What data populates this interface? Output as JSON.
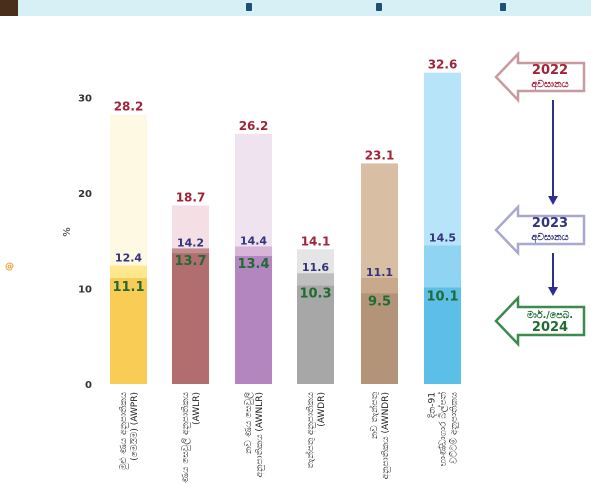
{
  "chart_data": {
    "type": "bar",
    "ylabel": "%",
    "ylim": [
      0,
      35
    ],
    "yticks": [
      0,
      10,
      20,
      30
    ],
    "grid": false,
    "categories": [
      {
        "lines": [
          "මුළු ණය අනුපාතිකය",
          "(මෙයිම) (AWPR)"
        ]
      },
      {
        "lines": [
          "ණය සෙවුලි අනුපාතිකය",
          "(AWLR)"
        ]
      },
      {
        "lines": [
          "නව ණය සෙවුලි",
          "අනුපාතිකය (AWNLR)"
        ]
      },
      {
        "lines": [
          "තැන්පතු අනුපාතිකය",
          "(AWDR)"
        ]
      },
      {
        "lines": [
          "නව තැන්පතු",
          "අනුපාතිකය (AWNDR)"
        ]
      },
      {
        "lines": [
          "දින-91",
          "භාණ්ඩාගාර බිල්පත්",
          "වට්ටම් අනුපාතිකය"
        ]
      }
    ],
    "series": [
      {
        "name": "2022 අවසානය",
        "values": [
          28.2,
          18.7,
          26.2,
          14.1,
          23.1,
          32.6
        ],
        "label_color": "#a0243a"
      },
      {
        "name": "2023 අවසානය",
        "values": [
          12.4,
          14.2,
          14.4,
          11.6,
          11.1,
          14.5
        ],
        "label_color": "#34337d"
      },
      {
        "name": "මාර්./පෙබ. 2024",
        "values": [
          11.1,
          13.7,
          13.4,
          10.3,
          9.5,
          10.1
        ],
        "label_color": "#1f6b33"
      }
    ],
    "bar_colors": [
      {
        "dark": "#f9cd55",
        "mid": "#fde88f",
        "light": "#fdf9e3"
      },
      {
        "dark": "#b26e6e",
        "mid": "#c08e91",
        "light": "#f3dfe4"
      },
      {
        "dark": "#b386bf",
        "mid": "#d8b4d9",
        "light": "#efe3f0"
      },
      {
        "dark": "#a7a7a7",
        "mid": "#bfbfbf",
        "light": "#e5e5e5"
      },
      {
        "dark": "#b39478",
        "mid": "#c9a98c",
        "light": "#d8bea3"
      },
      {
        "dark": "#5bbfe8",
        "mid": "#8fd4f2",
        "light": "#b7e4f8"
      }
    ],
    "legend": {
      "placement": "right",
      "items": [
        {
          "lines": [
            "2022",
            "අවසානය"
          ],
          "color": "#a0243a",
          "fill": "#ffffff",
          "stroke": "#c79aa0"
        },
        {
          "lines": [
            "2023",
            "අවසානය"
          ],
          "color": "#34337d",
          "fill": "#ffffff",
          "stroke": "#a8a8d0"
        },
        {
          "lines": [
            "මාර්./පෙබ.",
            "2024"
          ],
          "color": "#1f6b33",
          "fill": "#ffffff",
          "stroke": "#3c8a4e"
        }
      ],
      "connector_color": "#2c2f8f"
    }
  },
  "side_mark": "@"
}
